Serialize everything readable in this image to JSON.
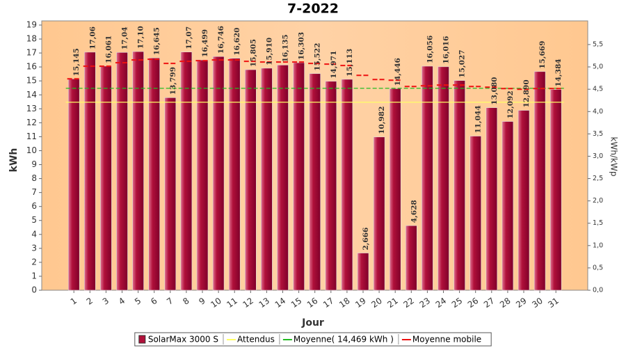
{
  "chart_data": {
    "type": "bar",
    "title": "7-2022",
    "x_label": "Jour",
    "y_label": "kWh",
    "y2_label": "kWh/kWp",
    "categories": [
      "1",
      "2",
      "3",
      "4",
      "5",
      "6",
      "7",
      "8",
      "9",
      "10",
      "11",
      "12",
      "13",
      "14",
      "15",
      "16",
      "17",
      "18",
      "19",
      "20",
      "21",
      "22",
      "23",
      "24",
      "25",
      "26",
      "27",
      "28",
      "29",
      "30",
      "31"
    ],
    "ylim": [
      0,
      19.3
    ],
    "yticks": [
      0,
      1,
      2,
      3,
      4,
      5,
      6,
      7,
      8,
      9,
      10,
      11,
      12,
      13,
      14,
      15,
      16,
      17,
      18,
      19
    ],
    "y2lim": [
      0,
      6.03
    ],
    "y2ticks": [
      {
        "value": 0,
        "label": "0,0"
      },
      {
        "value": 0.5,
        "label": "0,5"
      },
      {
        "value": 1,
        "label": "1,0"
      },
      {
        "value": 1.5,
        "label": "1,5"
      },
      {
        "value": 2,
        "label": "2,0"
      },
      {
        "value": 2.5,
        "label": "2,5"
      },
      {
        "value": 3,
        "label": "3,0"
      },
      {
        "value": 3.5,
        "label": "3,5"
      },
      {
        "value": 4,
        "label": "4,0"
      },
      {
        "value": 4.5,
        "label": "4,5"
      },
      {
        "value": 5,
        "label": "5,0"
      },
      {
        "value": 5.5,
        "label": "5,5"
      }
    ],
    "series": [
      {
        "name": "SolarMax 3000 S",
        "color": "#b0103a",
        "values": [
          15.145,
          17.06,
          16.061,
          17.04,
          17.1,
          16.645,
          13.799,
          17.07,
          16.499,
          16.746,
          16.62,
          15.805,
          15.91,
          16.135,
          16.303,
          15.522,
          14.971,
          15.113,
          2.666,
          10.982,
          14.446,
          4.628,
          16.056,
          16.016,
          15.027,
          11.044,
          13.08,
          12.092,
          12.89,
          15.669,
          14.384
        ],
        "value_labels": [
          "15,145",
          "17,06",
          "16,061",
          "17,04",
          "17,10",
          "16,645",
          "13,799",
          "17,07",
          "16,499",
          "16,746",
          "16,620",
          "15,805",
          "15,910",
          "16,135",
          "16,303",
          "15,522",
          "14,971",
          "15,113",
          "2,666",
          "10,982",
          "14,446",
          "4,628",
          "16,056",
          "16,016",
          "15,027",
          "11,044",
          "13,080",
          "12,092",
          "12,890",
          "15,669",
          "14,384"
        ]
      },
      {
        "name": "Attendus",
        "color": "#ffff66",
        "value": 13.47
      },
      {
        "name": "Moyenne( 14,469 kWh )",
        "color": "#22bb22",
        "value": 14.469
      },
      {
        "name": "Moyenne mobile",
        "color": "#ee1111",
        "values": [
          15.15,
          16.05,
          16.05,
          16.3,
          16.5,
          16.55,
          16.25,
          16.4,
          16.45,
          16.5,
          16.5,
          16.4,
          16.35,
          16.35,
          16.35,
          16.25,
          16.2,
          16.1,
          15.4,
          15.1,
          15.05,
          14.6,
          14.65,
          14.7,
          14.7,
          14.6,
          14.55,
          14.45,
          14.4,
          14.45,
          14.45
        ]
      }
    ]
  }
}
